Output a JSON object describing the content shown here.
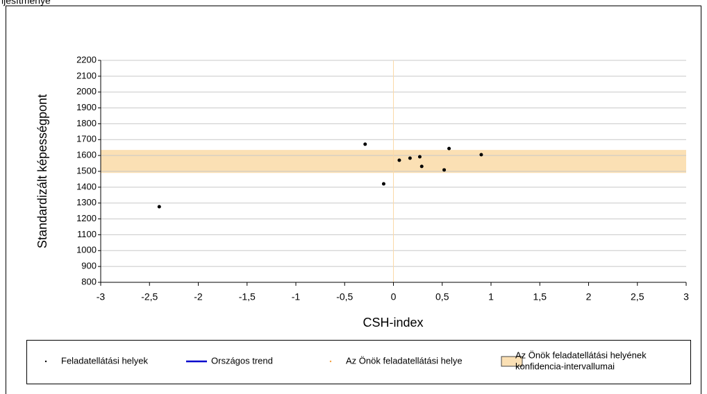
{
  "header": {
    "title": "ljesítménye"
  },
  "chart_data": {
    "type": "scatter",
    "x_label": "CSH-index",
    "y_label": "Standardizált képességpont",
    "xlim": [
      -3,
      3
    ],
    "xticks": [
      -3,
      {
        "value": -2.5,
        "label": "-2,5"
      },
      -2,
      {
        "value": -1.5,
        "label": "-1,5"
      },
      -1,
      {
        "value": -0.5,
        "label": "-0,5"
      },
      0,
      {
        "value": 0.5,
        "label": "0,5"
      },
      1,
      {
        "value": 1.5,
        "label": "1,5"
      },
      2,
      {
        "value": 2.5,
        "label": "2,5"
      },
      3
    ],
    "ylim": [
      800,
      2200
    ],
    "yticks": [
      800,
      900,
      1000,
      1100,
      1200,
      1300,
      1400,
      1500,
      1600,
      1700,
      1800,
      1900,
      2000,
      2100,
      2200
    ],
    "grid": true,
    "band": {
      "values": [
        1490,
        1635
      ],
      "color": "#fbe0b4"
    },
    "reference_x": {
      "value": 0,
      "color": "#fbd9a8"
    },
    "series": [
      {
        "name": "Feladatellátási helyek",
        "color": "#000000",
        "marker": "dot",
        "x": [
          -2.4,
          -0.29,
          -0.1,
          0.06,
          0.17,
          0.27,
          0.29,
          0.52,
          0.57,
          0.9
        ],
        "values": [
          1277,
          1671,
          1421,
          1570,
          1583,
          1592,
          1531,
          1509,
          1644,
          1605
        ]
      },
      {
        "name": "Országos trend",
        "color": "#0000cc",
        "marker": "line",
        "x": [],
        "values": []
      },
      {
        "name": "Az Önök feladatellátási helye",
        "color": "#f5a040",
        "marker": "dot",
        "x": [],
        "values": []
      },
      {
        "name": [
          "Az Önök feladatellátási helyének",
          "konfidencia-intervallumai"
        ],
        "color": "#fbe0b4",
        "marker": "box",
        "x": [],
        "values": []
      }
    ]
  }
}
